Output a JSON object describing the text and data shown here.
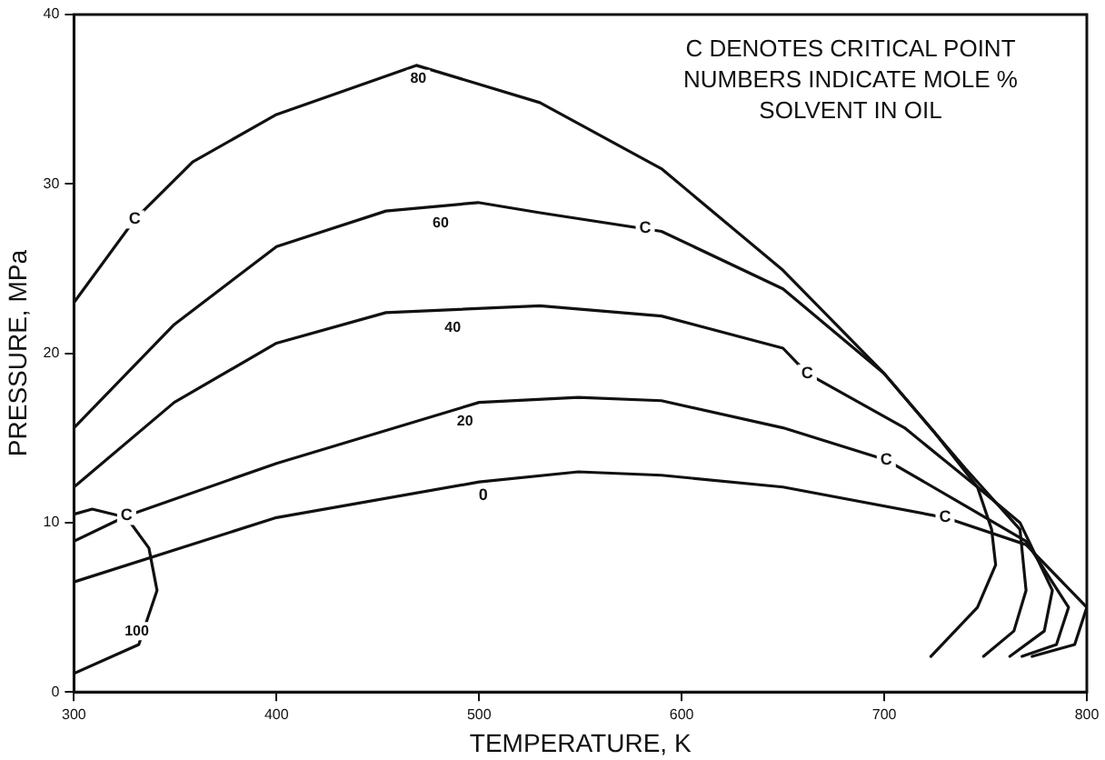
{
  "chart_data": {
    "type": "line",
    "xlabel": "TEMPERATURE, K",
    "ylabel": "PRESSURE, MPa",
    "xlim": [
      300,
      800
    ],
    "ylim": [
      0,
      40
    ],
    "xticks": [
      300,
      400,
      500,
      600,
      700,
      800
    ],
    "yticks": [
      0,
      10,
      20,
      30,
      40
    ],
    "grid": false,
    "marker": "none",
    "line_style": "solid",
    "series": [
      {
        "color": "#111111",
        "x": [
          300,
          400,
          500,
          549,
          590,
          650,
          730,
          770,
          800,
          794,
          773
        ],
        "values": [
          6.5,
          10.3,
          12.4,
          13.0,
          12.8,
          12.1,
          10.3,
          8.7,
          5.0,
          2.8,
          2.1
        ]
      },
      {
        "color": "#111111",
        "x": [
          300,
          326,
          400,
          500,
          549,
          590,
          650,
          701,
          740,
          770,
          791,
          785,
          768
        ],
        "values": [
          8.9,
          10.4,
          13.5,
          17.1,
          17.4,
          17.2,
          15.6,
          13.7,
          11.0,
          8.9,
          5.0,
          2.8,
          2.1
        ]
      },
      {
        "color": "#111111",
        "x": [
          300,
          349.5,
          400,
          454,
          530,
          590,
          650,
          662,
          710,
          746,
          767,
          783,
          779,
          762
        ],
        "values": [
          12.1,
          17.1,
          20.6,
          22.4,
          22.8,
          22.2,
          20.3,
          18.8,
          15.6,
          12.1,
          10.0,
          6.0,
          3.6,
          2.1
        ]
      },
      {
        "color": "#111111",
        "x": [
          300,
          349.5,
          400,
          454,
          499.5,
          530,
          590,
          650,
          700,
          740,
          767,
          770,
          764,
          749
        ],
        "values": [
          15.6,
          21.7,
          26.3,
          28.4,
          28.9,
          28.3,
          27.2,
          23.8,
          18.8,
          13.2,
          9.6,
          6.0,
          3.6,
          2.1
        ]
      },
      {
        "color": "#111111",
        "x": [
          300,
          330,
          358.6,
          400,
          469,
          530,
          590,
          650,
          700,
          725,
          746,
          753,
          755,
          746,
          723
        ],
        "values": [
          23,
          27.9,
          31.3,
          34.1,
          37,
          34.8,
          30.9,
          24.9,
          18.8,
          15.3,
          12.1,
          9.6,
          7.5,
          5.0,
          2.1
        ]
      },
      {
        "color": "#111111",
        "x": [
          300,
          309,
          326,
          337,
          341,
          332,
          300
        ],
        "values": [
          10.5,
          10.8,
          10.3,
          8.5,
          6.0,
          2.8,
          1.1
        ]
      }
    ],
    "annotations": [
      "C DENOTES CRITICAL POINT",
      "NUMBERS INDICATE MOLE % SOLVENT IN OIL",
      {
        "text": "0",
        "x": 502,
        "y": 11.6
      },
      {
        "text": "20",
        "x": 493,
        "y": 16.0
      },
      {
        "text": "40",
        "x": 487,
        "y": 21.5
      },
      {
        "text": "60",
        "x": 481,
        "y": 27.7
      },
      {
        "text": "80",
        "x": 470,
        "y": 36.2
      },
      {
        "text": "100",
        "x": 331,
        "y": 3.6
      },
      {
        "text": "C",
        "x": 330,
        "y": 27.9
      },
      {
        "text": "C",
        "x": 582,
        "y": 27.4
      },
      {
        "text": "C",
        "x": 662,
        "y": 18.8
      },
      {
        "text": "C",
        "x": 701,
        "y": 13.7
      },
      {
        "text": "C",
        "x": 730,
        "y": 10.3
      },
      {
        "text": "C",
        "x": 326,
        "y": 10.4
      }
    ]
  }
}
